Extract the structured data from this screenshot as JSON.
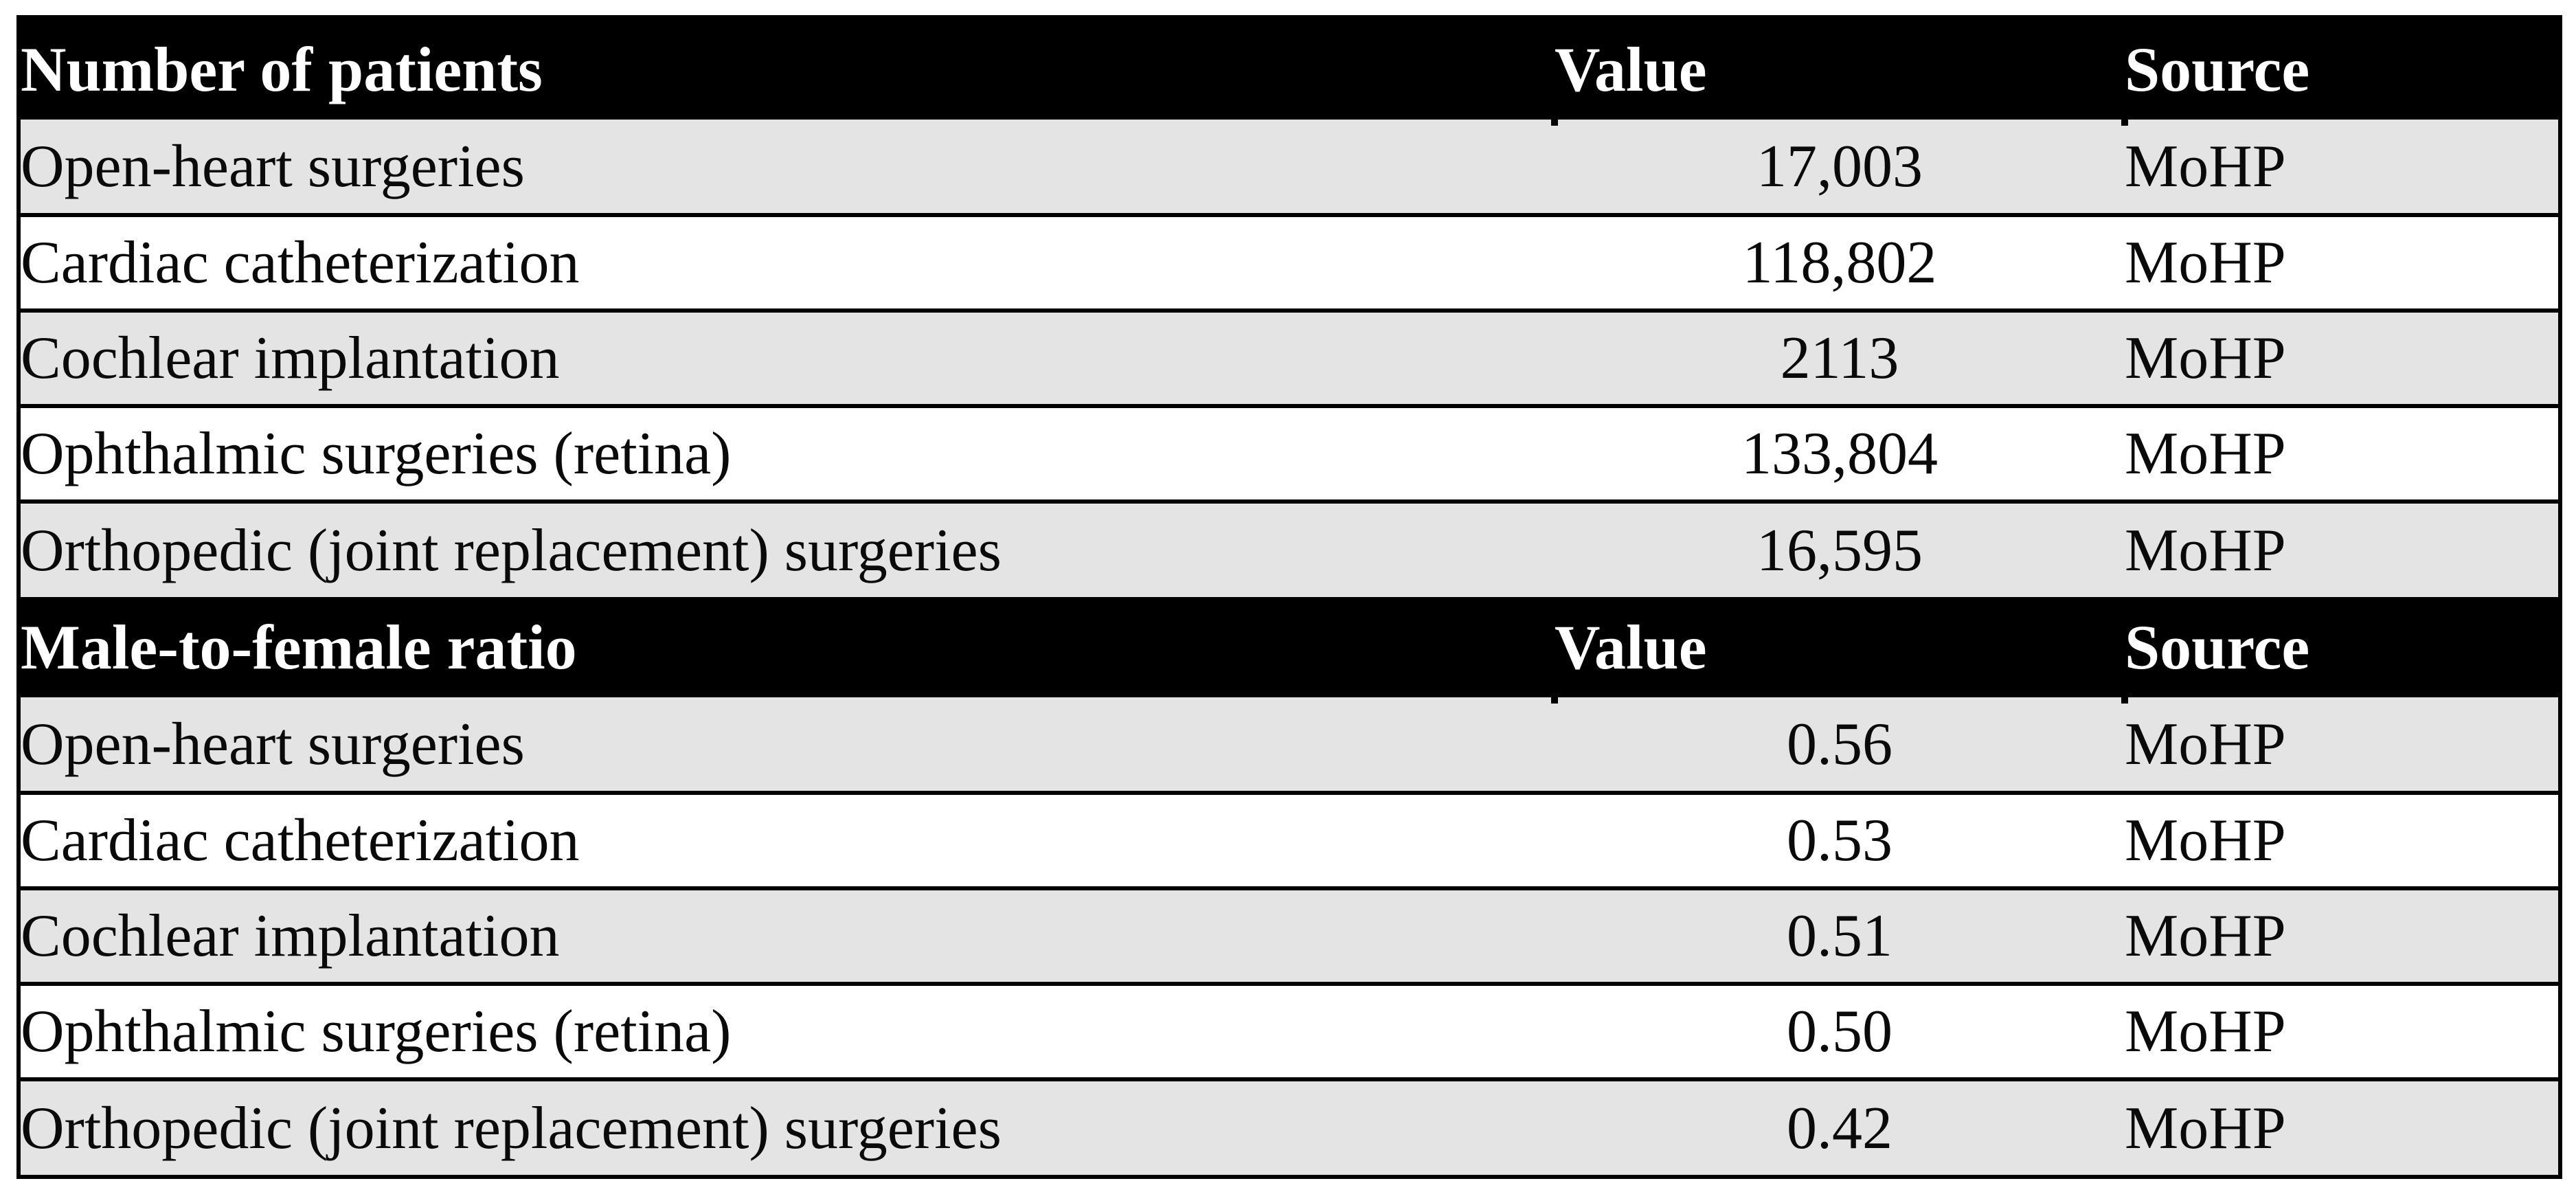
{
  "colors": {
    "header_bg": "#000000",
    "header_text": "#ffffff",
    "row_alt_bg": "#e4e4e4",
    "row_bg": "#ffffff",
    "border": "#000000"
  },
  "sections": [
    {
      "title": "Number of patients",
      "value_header": "Value",
      "source_header": "Source",
      "rows": [
        {
          "name": "Open-heart surgeries",
          "value": "17,003",
          "source": "MoHP"
        },
        {
          "name": "Cardiac catheterization",
          "value": "118,802",
          "source": "MoHP"
        },
        {
          "name": "Cochlear implantation",
          "value": "2113",
          "source": "MoHP"
        },
        {
          "name": "Ophthalmic surgeries (retina)",
          "value": "133,804",
          "source": "MoHP"
        },
        {
          "name": "Orthopedic (joint replacement) surgeries",
          "value": "16,595",
          "source": "MoHP"
        }
      ]
    },
    {
      "title": "Male-to-female ratio",
      "value_header": "Value",
      "source_header": "Source",
      "rows": [
        {
          "name": "Open-heart surgeries",
          "value": "0.56",
          "source": "MoHP"
        },
        {
          "name": "Cardiac catheterization",
          "value": "0.53",
          "source": "MoHP"
        },
        {
          "name": "Cochlear implantation",
          "value": "0.51",
          "source": "MoHP"
        },
        {
          "name": "Ophthalmic surgeries (retina)",
          "value": "0.50",
          "source": "MoHP"
        },
        {
          "name": "Orthopedic (joint replacement) surgeries",
          "value": "0.42",
          "source": "MoHP"
        }
      ]
    }
  ]
}
